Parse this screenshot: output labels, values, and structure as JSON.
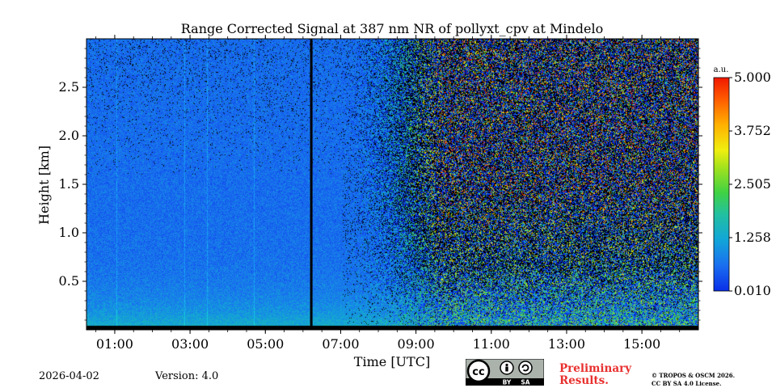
{
  "chart_data": {
    "type": "heatmap",
    "title": "Range Corrected Signal at 387 nm NR of pollyxt_cpv at Mindelo",
    "xlabel": "Time [UTC]",
    "ylabel": "Height [km]",
    "xlim": [
      0.0,
      16.25
    ],
    "ylim": [
      0.0,
      3.0
    ],
    "x_ticks": [
      {
        "value": 0.75,
        "label": "01:00"
      },
      {
        "value": 2.75,
        "label": "03:00"
      },
      {
        "value": 4.75,
        "label": "05:00"
      },
      {
        "value": 6.75,
        "label": "07:00"
      },
      {
        "value": 8.75,
        "label": "09:00"
      },
      {
        "value": 10.75,
        "label": "11:00"
      },
      {
        "value": 12.75,
        "label": "13:00"
      },
      {
        "value": 14.75,
        "label": "15:00"
      }
    ],
    "y_ticks": [
      {
        "value": 0.5,
        "label": "0.5"
      },
      {
        "value": 1.0,
        "label": "1.0"
      },
      {
        "value": 1.5,
        "label": "1.5"
      },
      {
        "value": 2.0,
        "label": "2.0"
      },
      {
        "value": 2.5,
        "label": "2.5"
      }
    ],
    "colorbar": {
      "unit": "a.u.",
      "min": 0.01,
      "max": 5.0,
      "ticks": [
        {
          "value": 0.01,
          "label": "0.010"
        },
        {
          "value": 1.258,
          "label": "1.258"
        },
        {
          "value": 2.505,
          "label": "2.505"
        },
        {
          "value": 3.752,
          "label": "3.752"
        },
        {
          "value": 5.0,
          "label": "5.000"
        }
      ]
    },
    "data_gap_time": 5.97,
    "signal_description": {
      "background_level": 0.6,
      "noise_increase_after": 7.9
    }
  },
  "footer": {
    "date": "2026-04-02",
    "version": "Version: 4.0",
    "preliminary_line1": "Preliminary",
    "preliminary_line2": "Results.",
    "copyright_line1": "© TROPOS & OSCM 2026.",
    "copyright_line2": "CC BY SA 4.0 License.",
    "license_badge": {
      "cc": "cc",
      "by": "BY",
      "sa": "SA"
    }
  },
  "colors": {
    "background_blue": "#1560e0",
    "gap_line": "#000000",
    "preliminary": "#e8312f"
  }
}
